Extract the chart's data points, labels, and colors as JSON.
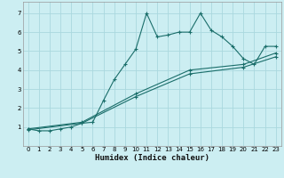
{
  "xlabel": "Humidex (Indice chaleur)",
  "bg_color": "#cceef2",
  "grid_color": "#aad8de",
  "line_color": "#1a6e6a",
  "xlim": [
    -0.5,
    23.5
  ],
  "ylim": [
    0,
    7.6
  ],
  "xticks": [
    0,
    1,
    2,
    3,
    4,
    5,
    6,
    7,
    8,
    9,
    10,
    11,
    12,
    13,
    14,
    15,
    16,
    17,
    18,
    19,
    20,
    21,
    22,
    23
  ],
  "yticks": [
    1,
    2,
    3,
    4,
    5,
    6,
    7
  ],
  "curve1_x": [
    0,
    1,
    2,
    3,
    4,
    5,
    6,
    7,
    8,
    9,
    10,
    11,
    12,
    13,
    14,
    15,
    16,
    17,
    18,
    19,
    20,
    21,
    22,
    23
  ],
  "curve1_y": [
    0.9,
    0.8,
    0.8,
    0.9,
    1.0,
    1.2,
    1.25,
    2.4,
    3.5,
    4.3,
    5.1,
    7.0,
    5.75,
    5.85,
    6.0,
    6.0,
    7.0,
    6.1,
    5.75,
    5.25,
    4.6,
    4.3,
    5.25,
    5.25
  ],
  "curve2_x": [
    0,
    5,
    10,
    15,
    20,
    23
  ],
  "curve2_y": [
    0.85,
    1.2,
    2.6,
    3.8,
    4.15,
    4.7
  ],
  "curve3_x": [
    0,
    5,
    10,
    15,
    20,
    23
  ],
  "curve3_y": [
    0.9,
    1.25,
    2.75,
    4.0,
    4.3,
    4.9
  ]
}
